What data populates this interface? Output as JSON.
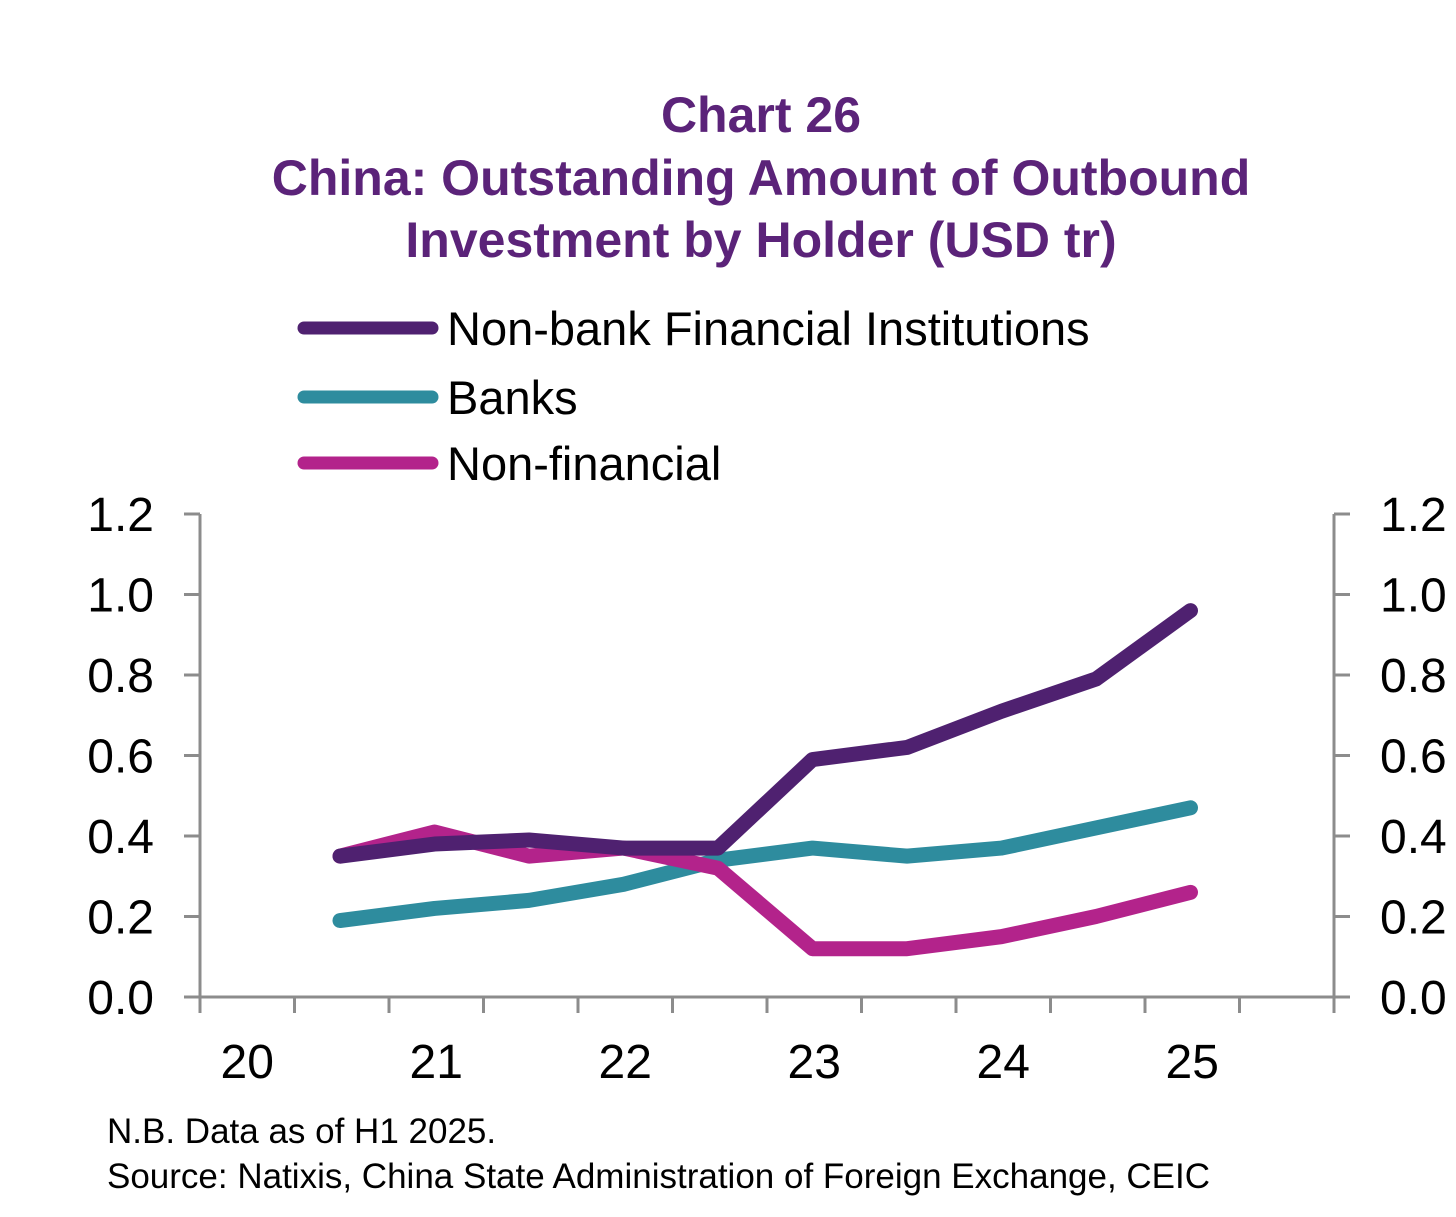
{
  "chart_data": {
    "type": "line",
    "title": [
      "Chart 26",
      "China: Outstanding Amount of Outbound",
      "Investment by Holder (USD tr)"
    ],
    "xlabel": "",
    "ylabel": "",
    "x_tick_labels": [
      "20",
      "21",
      "22",
      "23",
      "24",
      "25"
    ],
    "y_ticks": [
      "0.0",
      "0.2",
      "0.4",
      "0.6",
      "0.8",
      "1.0",
      "1.2"
    ],
    "ylim": [
      0,
      1.2
    ],
    "x_periods": [
      "2020 H2",
      "2021 H1",
      "2021 H2",
      "2022 H1",
      "2022 H2",
      "2023 H1",
      "2023 H2",
      "2024 H1",
      "2024 H2",
      "2025 H1"
    ],
    "series": [
      {
        "name": "Non-bank Financial Institutions",
        "color": "#4f2170",
        "values": [
          0.35,
          0.38,
          0.39,
          0.37,
          0.37,
          0.59,
          0.62,
          0.71,
          0.79,
          0.96
        ]
      },
      {
        "name": "Banks",
        "color": "#2e8c9e",
        "values": [
          0.19,
          0.22,
          0.24,
          0.28,
          0.34,
          0.37,
          0.35,
          0.37,
          0.42,
          0.47
        ]
      },
      {
        "name": "Non-financial",
        "color": "#b3238b",
        "values": [
          0.35,
          0.41,
          0.35,
          0.37,
          0.32,
          0.12,
          0.12,
          0.15,
          0.2,
          0.26
        ]
      }
    ],
    "legend_position": "top-left",
    "dual_y_axis": true,
    "grid": false
  },
  "footnotes": {
    "note": "N.B. Data as of H1 2025.",
    "source": "Source: Natixis, China State Administration of Foreign Exchange, CEIC"
  },
  "colors": {
    "title": "#5b2379",
    "axis": "#8c8c8c"
  }
}
